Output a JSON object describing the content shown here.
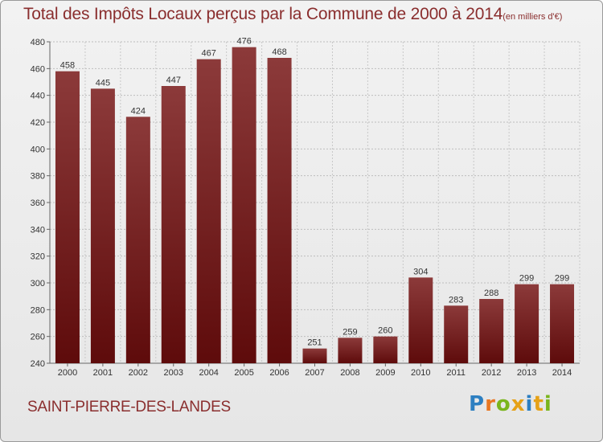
{
  "chart_data": {
    "type": "bar",
    "title": "Total des Impôts Locaux perçus par la Commune de 2000 à 2014",
    "unit_label": "(en milliers d'€)",
    "categories": [
      "2000",
      "2001",
      "2002",
      "2003",
      "2004",
      "2005",
      "2006",
      "2007",
      "2008",
      "2009",
      "2010",
      "2011",
      "2012",
      "2013",
      "2014"
    ],
    "values": [
      458,
      445,
      424,
      447,
      467,
      476,
      468,
      251,
      259,
      260,
      304,
      283,
      288,
      299,
      299
    ],
    "ylim": [
      240,
      480
    ],
    "yticks": [
      240,
      260,
      280,
      300,
      320,
      340,
      360,
      380,
      400,
      420,
      440,
      460,
      480
    ],
    "grid": true,
    "xlabel": "",
    "ylabel": ""
  },
  "footer": {
    "commune": "SAINT-PIERRE-DES-LANDES",
    "logo_letters": [
      "P",
      "r",
      "o",
      "x",
      "i",
      "t",
      "i"
    ]
  },
  "colors": {
    "bar_top": "#8c3a3a",
    "bar_bottom": "#5e0b0b",
    "title": "#8a2e2e",
    "logo": [
      "#2d7fc1",
      "#e87722",
      "#7ab51d",
      "#e6a117",
      "#2d7fc1",
      "#e6a117",
      "#7ab51d"
    ]
  }
}
